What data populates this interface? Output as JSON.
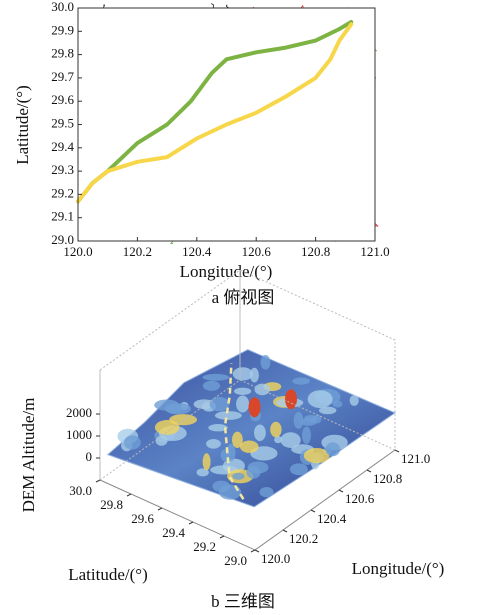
{
  "chart_data": [
    {
      "type": "line",
      "x_label": "Longitude/(°)",
      "y_label": "Latitude/(°)",
      "caption": "a 俯视图",
      "xlim": [
        120,
        121
      ],
      "ylim": [
        29,
        30
      ],
      "xticks": [
        {
          "value": 120,
          "label": "120.0"
        },
        {
          "value": 120.2,
          "label": "120.2"
        },
        {
          "value": 120.4,
          "label": "120.4"
        },
        {
          "value": 120.6,
          "label": "120.6"
        },
        {
          "value": 120.8,
          "label": "120.8"
        },
        {
          "value": 121,
          "label": "121.0"
        }
      ],
      "yticks": [
        {
          "value": 29,
          "label": "29.0"
        },
        {
          "value": 29.1,
          "label": "29.1"
        },
        {
          "value": 29.2,
          "label": "29.2"
        },
        {
          "value": 29.3,
          "label": "29.3"
        },
        {
          "value": 29.4,
          "label": "29.4"
        },
        {
          "value": 29.5,
          "label": "29.5"
        },
        {
          "value": 29.6,
          "label": "29.6"
        },
        {
          "value": 29.7,
          "label": "29.7"
        },
        {
          "value": 29.8,
          "label": "29.8"
        },
        {
          "value": 29.9,
          "label": "29.9"
        },
        {
          "value": 30,
          "label": "30.0"
        }
      ],
      "series": [
        {
          "color": "#7cb342",
          "x": [
            120.0,
            120.05,
            120.1,
            120.2,
            120.3,
            120.38,
            120.45,
            120.5,
            120.6,
            120.7,
            120.8,
            120.88,
            120.92
          ],
          "values": [
            29.17,
            29.25,
            29.3,
            29.42,
            29.5,
            29.6,
            29.72,
            29.78,
            29.81,
            29.83,
            29.86,
            29.91,
            29.94
          ]
        },
        {
          "color": "#f7d64a",
          "x": [
            120.0,
            120.05,
            120.1,
            120.2,
            120.3,
            120.4,
            120.5,
            120.6,
            120.7,
            120.8,
            120.85,
            120.88,
            120.92
          ],
          "values": [
            29.17,
            29.25,
            29.3,
            29.34,
            29.36,
            29.44,
            29.5,
            29.55,
            29.62,
            29.7,
            29.78,
            29.86,
            29.93
          ]
        }
      ]
    },
    {
      "type": "surface3d",
      "z_label": "DEM Altitude/m",
      "y_label": "Latitude/(°)",
      "x_label": "Longitude/(°)",
      "caption": "b 三维图",
      "xlim": [
        120,
        121
      ],
      "ylim": [
        29,
        30
      ],
      "zlim": [
        -1000,
        2000
      ],
      "xticks": [
        {
          "value": 120,
          "label": "120.0"
        },
        {
          "value": 120.2,
          "label": "120.2"
        },
        {
          "value": 120.4,
          "label": "120.4"
        },
        {
          "value": 120.6,
          "label": "120.6"
        },
        {
          "value": 120.8,
          "label": "120.8"
        },
        {
          "value": 121,
          "label": "121.0"
        }
      ],
      "yticks": [
        {
          "value": 29,
          "label": "29.0"
        },
        {
          "value": 29.2,
          "label": "29.2"
        },
        {
          "value": 29.4,
          "label": "29.4"
        },
        {
          "value": 29.6,
          "label": "29.6"
        },
        {
          "value": 29.8,
          "label": "29.8"
        },
        {
          "value": 30,
          "label": "30.0"
        }
      ],
      "zticks": [
        0,
        1000,
        2000
      ]
    }
  ]
}
